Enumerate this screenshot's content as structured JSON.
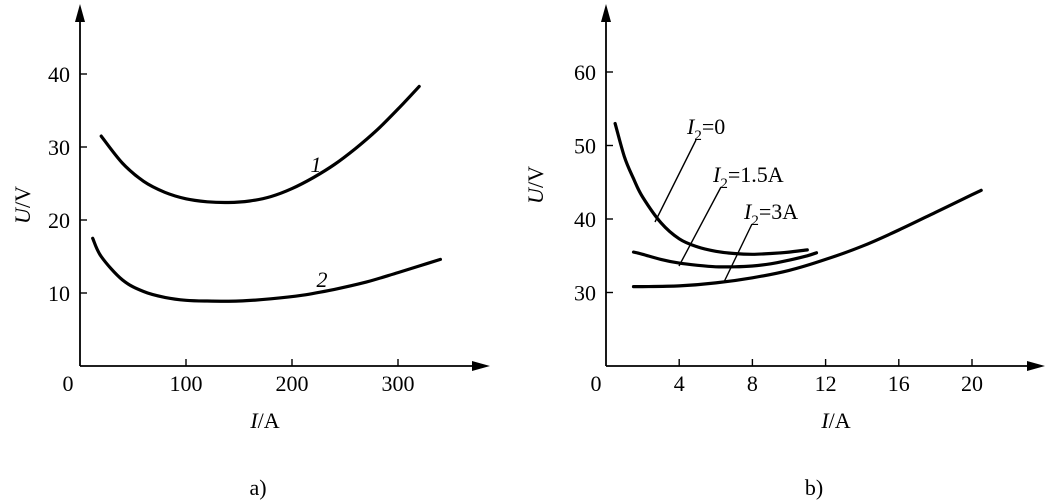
{
  "chart_data": [
    {
      "type": "line",
      "panel_label": "a)",
      "xlabel": "I/A",
      "ylabel": "U/V",
      "origin_label": "0",
      "xlim": [
        0,
        360
      ],
      "ylim": [
        0,
        48
      ],
      "xticks": [
        100,
        200,
        300
      ],
      "yticks": [
        10,
        20,
        30,
        40
      ],
      "series": [
        {
          "name": "1",
          "x": [
            20,
            40,
            60,
            80,
            100,
            120,
            140,
            160,
            180,
            200,
            220,
            240,
            260,
            280,
            300,
            320
          ],
          "y": [
            31.5,
            27.8,
            25.3,
            23.8,
            22.9,
            22.5,
            22.4,
            22.6,
            23.2,
            24.3,
            25.8,
            27.6,
            29.8,
            32.3,
            35.2,
            38.3
          ]
        },
        {
          "name": "2",
          "x": [
            12,
            20,
            40,
            60,
            80,
            100,
            120,
            150,
            180,
            210,
            240,
            270,
            300,
            320,
            340
          ],
          "y": [
            17.5,
            15.0,
            11.8,
            10.2,
            9.4,
            9.0,
            8.9,
            8.9,
            9.2,
            9.7,
            10.5,
            11.5,
            12.8,
            13.7,
            14.6
          ]
        }
      ]
    },
    {
      "type": "line",
      "panel_label": "b)",
      "xlabel": "I/A",
      "ylabel": "U/V",
      "origin_label": "0",
      "xlim": [
        0,
        22
      ],
      "ylim": [
        20,
        67
      ],
      "xticks": [
        4,
        8,
        12,
        16,
        20
      ],
      "yticks": [
        30,
        40,
        50,
        60
      ],
      "series": [
        {
          "name": "I₂=0",
          "x": [
            0.5,
            1,
            1.5,
            2,
            3,
            4,
            5,
            6,
            7,
            8,
            9,
            10,
            11
          ],
          "y": [
            53,
            48.5,
            45.5,
            43.0,
            39.5,
            37.3,
            36.2,
            35.6,
            35.3,
            35.2,
            35.3,
            35.5,
            35.8
          ]
        },
        {
          "name": "I₂=1.5A",
          "x": [
            1.5,
            2,
            3,
            4,
            5,
            6,
            7,
            8,
            9,
            10,
            11,
            11.5
          ],
          "y": [
            35.5,
            35.2,
            34.5,
            34.0,
            33.7,
            33.5,
            33.5,
            33.6,
            33.9,
            34.4,
            35.0,
            35.4
          ]
        },
        {
          "name": "I₂=3A",
          "x": [
            1.5,
            2,
            4,
            6,
            8,
            10,
            12,
            14,
            16,
            18,
            20,
            20.5
          ],
          "y": [
            30.8,
            30.8,
            30.9,
            31.3,
            32.0,
            33.0,
            34.5,
            36.3,
            38.5,
            40.9,
            43.3,
            43.9
          ]
        }
      ]
    }
  ]
}
